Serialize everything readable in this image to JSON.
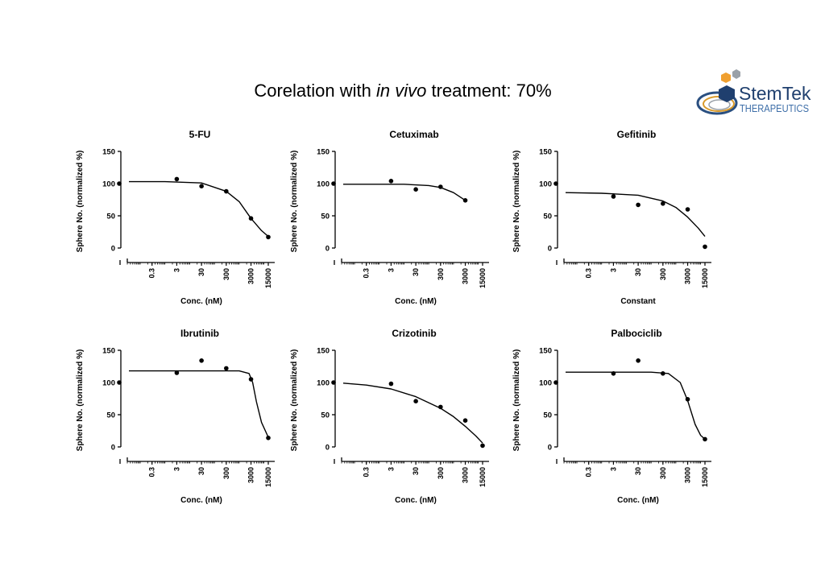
{
  "header": {
    "title_prefix": "Corelation with ",
    "title_italic": "in vivo",
    "title_suffix": " treatment: 70%"
  },
  "logo": {
    "name_part1": "Stem",
    "name_part2": "Tek",
    "subtitle": "THERAPEUTICS",
    "colors": {
      "navy": "#1f3f6e",
      "orange": "#f0a030",
      "gray": "#9aa1a8",
      "blue_text": "#3d6ea8"
    }
  },
  "chart_data": [
    {
      "type": "scatter",
      "title": "5-FU",
      "xlabel": "Conc. (nM)",
      "ylabel": "Sphere No. (normalized %)",
      "ylim": [
        0,
        150
      ],
      "yticks": [
        "0",
        "50",
        "100",
        "150"
      ],
      "xticks": [
        "0.3",
        "3",
        "30",
        "300",
        "3000",
        "15000"
      ],
      "control_value": 100,
      "points": [
        [
          3,
          107
        ],
        [
          30,
          96
        ],
        [
          300,
          88
        ],
        [
          3000,
          46
        ],
        [
          15000,
          17
        ]
      ],
      "curve": [
        [
          0.01,
          103
        ],
        [
          1,
          103
        ],
        [
          30,
          101
        ],
        [
          300,
          88
        ],
        [
          1000,
          72
        ],
        [
          3000,
          46
        ],
        [
          8000,
          27
        ],
        [
          15000,
          18
        ]
      ]
    },
    {
      "type": "scatter",
      "title": "Cetuximab",
      "xlabel": "Conc. (nM)",
      "ylabel": "Sphere No. (normalized %)",
      "ylim": [
        0,
        150
      ],
      "yticks": [
        "0",
        "50",
        "100",
        "150"
      ],
      "xticks": [
        "0.3",
        "3",
        "30",
        "300",
        "3000",
        "15000"
      ],
      "control_value": 100,
      "points": [
        [
          3,
          104
        ],
        [
          30,
          91
        ],
        [
          300,
          95
        ],
        [
          3000,
          74
        ]
      ],
      "curve": [
        [
          0.01,
          99
        ],
        [
          10,
          99
        ],
        [
          100,
          97
        ],
        [
          300,
          94
        ],
        [
          1000,
          86
        ],
        [
          3000,
          74
        ]
      ]
    },
    {
      "type": "scatter",
      "title": "Gefitinib",
      "xlabel": "Constant",
      "ylabel": "Sphere No. (normalized %)",
      "ylim": [
        0,
        150
      ],
      "yticks": [
        "0",
        "50",
        "100",
        "150"
      ],
      "xticks": [
        "0.3",
        "3",
        "30",
        "300",
        "3000",
        "15000"
      ],
      "control_value": 100,
      "points": [
        [
          3,
          80
        ],
        [
          30,
          67
        ],
        [
          300,
          69
        ],
        [
          3000,
          60
        ],
        [
          15000,
          2
        ]
      ],
      "curve": [
        [
          0.01,
          86
        ],
        [
          1,
          85
        ],
        [
          30,
          82
        ],
        [
          300,
          73
        ],
        [
          1000,
          63
        ],
        [
          3000,
          48
        ],
        [
          8000,
          31
        ],
        [
          15000,
          18
        ]
      ]
    },
    {
      "type": "scatter",
      "title": "Ibrutinib",
      "xlabel": "Conc. (nM)",
      "ylabel": "Sphere No. (normalized %)",
      "ylim": [
        0,
        150
      ],
      "yticks": [
        "0",
        "50",
        "100",
        "150"
      ],
      "xticks": [
        "0.3",
        "3",
        "30",
        "300",
        "3000",
        "15000"
      ],
      "control_value": 100,
      "points": [
        [
          3,
          115
        ],
        [
          30,
          134
        ],
        [
          300,
          122
        ],
        [
          3000,
          105
        ],
        [
          15000,
          14
        ]
      ],
      "curve": [
        [
          0.01,
          118
        ],
        [
          1000,
          118
        ],
        [
          2500,
          114
        ],
        [
          3500,
          100
        ],
        [
          5000,
          70
        ],
        [
          8000,
          38
        ],
        [
          15000,
          15
        ]
      ]
    },
    {
      "type": "scatter",
      "title": "Crizotinib",
      "xlabel": "Conc. (nM)",
      "ylabel": "Sphere No. (normalized %)",
      "ylim": [
        0,
        150
      ],
      "yticks": [
        "0",
        "50",
        "100",
        "150"
      ],
      "xticks": [
        "0.3",
        "3",
        "30",
        "300",
        "3000",
        "15000"
      ],
      "control_value": 100,
      "points": [
        [
          3,
          98
        ],
        [
          30,
          71
        ],
        [
          300,
          62
        ],
        [
          3000,
          41
        ],
        [
          15000,
          2
        ]
      ],
      "curve": [
        [
          0.01,
          99
        ],
        [
          0.3,
          96
        ],
        [
          3,
          90
        ],
        [
          30,
          78
        ],
        [
          300,
          60
        ],
        [
          1000,
          47
        ],
        [
          3000,
          32
        ],
        [
          8000,
          17
        ],
        [
          15000,
          6
        ]
      ]
    },
    {
      "type": "scatter",
      "title": "Palbociclib",
      "xlabel": "Conc. (nM)",
      "ylabel": "Sphere No. (normalized %)",
      "ylim": [
        0,
        150
      ],
      "yticks": [
        "0",
        "50",
        "100",
        "150"
      ],
      "xticks": [
        "0.3",
        "3",
        "30",
        "300",
        "3000",
        "15000"
      ],
      "control_value": 100,
      "points": [
        [
          3,
          114
        ],
        [
          30,
          134
        ],
        [
          300,
          114
        ],
        [
          3000,
          74
        ],
        [
          15000,
          12
        ]
      ],
      "curve": [
        [
          0.01,
          116
        ],
        [
          100,
          116
        ],
        [
          500,
          114
        ],
        [
          1500,
          100
        ],
        [
          3000,
          72
        ],
        [
          6000,
          35
        ],
        [
          10000,
          18
        ],
        [
          15000,
          12
        ]
      ]
    }
  ]
}
